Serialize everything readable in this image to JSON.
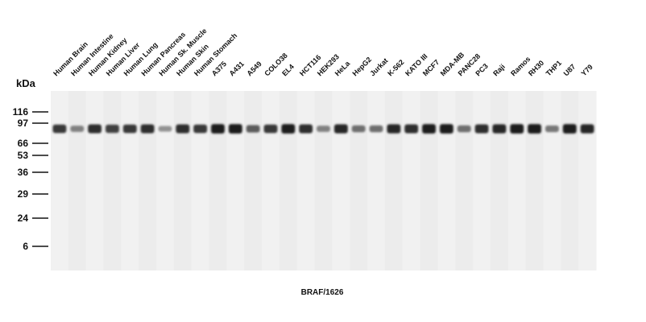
{
  "unit_label": "kDa",
  "lanes": [
    "Human Brain",
    "Human Intestine",
    "Human Kidney",
    "Human Liver",
    "Human Lung",
    "Human Pancreas",
    "Human Sk. Muscle",
    "Human Skin",
    "Human Stomach",
    "A375",
    "A431",
    "A549",
    "COLO38",
    "EL4",
    "HCT116",
    "HEK293",
    "HeLa",
    "HepG2",
    "Jurkat",
    "K-562",
    "KATO III",
    "MCF7",
    "MDA-MB",
    "PANC28",
    "PC3",
    "Raji",
    "Ramos",
    "RH30",
    "THP1",
    "U87",
    "Y79"
  ],
  "markers": [
    "116",
    "97",
    "66",
    "53",
    "36",
    "29",
    "24",
    "6"
  ],
  "caption": "BRAF/1626"
}
